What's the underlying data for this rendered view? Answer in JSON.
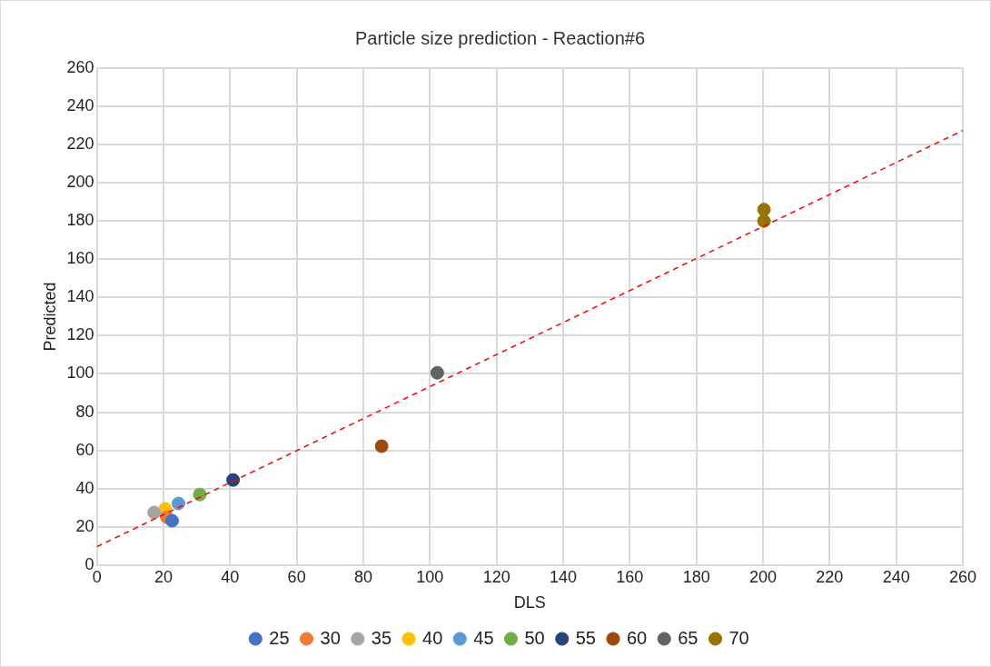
{
  "chart_data": {
    "type": "scatter",
    "title": "Particle size prediction - Reaction#6",
    "xlabel": "DLS",
    "ylabel": "Predicted",
    "xlim": [
      0,
      260
    ],
    "xticks": [
      0,
      20,
      40,
      60,
      80,
      100,
      120,
      140,
      160,
      180,
      200,
      220,
      240,
      260
    ],
    "ylim": [
      0,
      260
    ],
    "yticks": [
      0,
      20,
      40,
      60,
      80,
      100,
      120,
      140,
      160,
      180,
      200,
      220,
      240,
      260
    ],
    "grid": true,
    "legend": "bottom",
    "marker": "circle",
    "series": [
      {
        "name": "25",
        "color": "#4472c4",
        "x": [
          22.6
        ],
        "values": [
          23.2
        ]
      },
      {
        "name": "30",
        "color": "#ed7d31",
        "x": [
          21
        ],
        "values": [
          25
        ]
      },
      {
        "name": "35",
        "color": "#a5a5a5",
        "x": [
          17.2
        ],
        "values": [
          27.5
        ]
      },
      {
        "name": "40",
        "color": "#ffc000",
        "x": [
          20.5
        ],
        "values": [
          29.4
        ]
      },
      {
        "name": "45",
        "color": "#5b9bd5",
        "x": [
          24.5
        ],
        "values": [
          32.2
        ]
      },
      {
        "name": "50",
        "color": "#70ad47",
        "x": [
          30.9
        ],
        "values": [
          36.9
        ]
      },
      {
        "name": "55",
        "color": "#264478",
        "x": [
          40.9
        ],
        "values": [
          44.5
        ]
      },
      {
        "name": "60",
        "color": "#9e480e",
        "x": [
          85.5
        ],
        "values": [
          62.2
        ]
      },
      {
        "name": "65",
        "color": "#636363",
        "x": [
          102.2
        ],
        "values": [
          100.6
        ]
      },
      {
        "name": "70",
        "color": "#997300",
        "x": [
          200.3,
          200.3
        ],
        "values": [
          180,
          186
        ]
      },
      {
        "type": "line",
        "color": "#ff0000",
        "line_style": "dashed",
        "marker": "none",
        "x": [
          0,
          260
        ],
        "values": [
          9.6,
          227.4
        ]
      }
    ]
  }
}
